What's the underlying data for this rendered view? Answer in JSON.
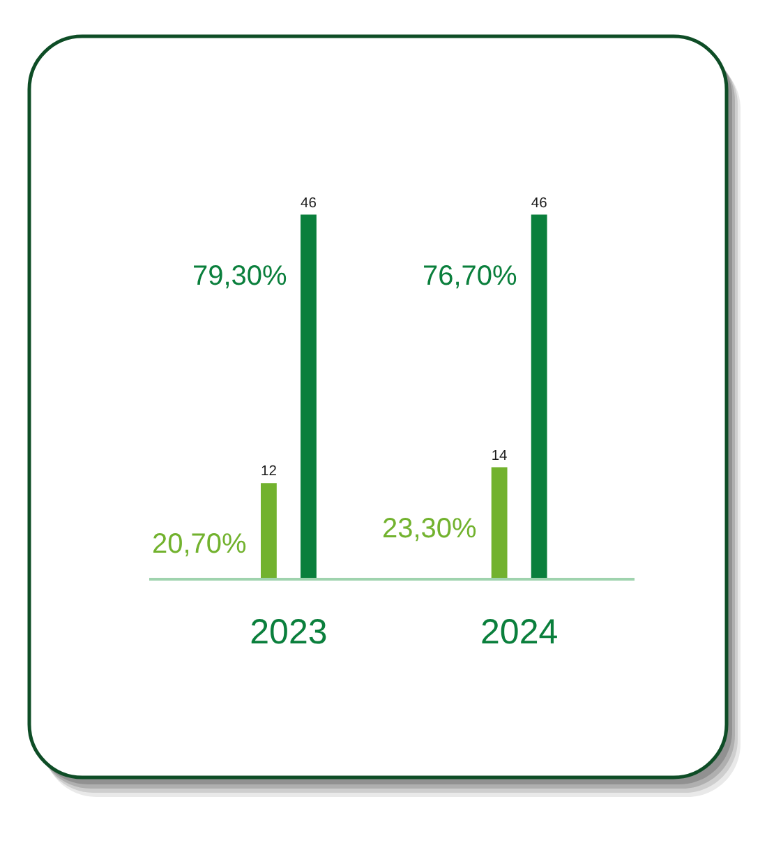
{
  "chart_data": {
    "type": "bar",
    "categories": [
      "2023",
      "2024"
    ],
    "series": [
      {
        "color": "#72b22e",
        "values": [
          12,
          14
        ]
      },
      {
        "color": "#0a7f3c",
        "values": [
          46,
          46
        ]
      }
    ],
    "data_labels": true,
    "tick_labels": "x",
    "annotations": [
      "20,70%",
      "79,30%",
      "23,30%",
      "76,70%"
    ]
  }
}
